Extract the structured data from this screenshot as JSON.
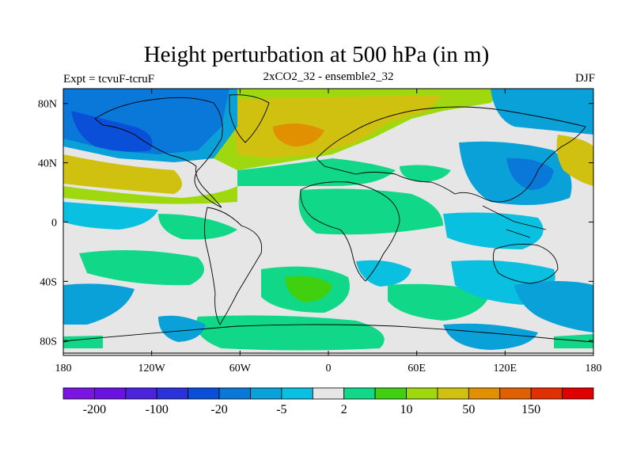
{
  "title": "Height perturbation at 500 hPa (in m)",
  "subtitle_left": "Expt = tcvuF-tcruF",
  "subtitle_center": "2xCO2_32 - ensemble2_32",
  "subtitle_right": "DJF",
  "map": {
    "lat_range": [
      -90,
      90
    ],
    "lon_range": [
      -180,
      180
    ],
    "lat_ticks": [
      {
        "value": 80,
        "label": "80N"
      },
      {
        "value": 40,
        "label": "40N"
      },
      {
        "value": 0,
        "label": "0"
      },
      {
        "value": -40,
        "label": "40S"
      },
      {
        "value": -80,
        "label": "80S"
      }
    ],
    "lon_ticks": [
      {
        "value": -180,
        "label": "180"
      },
      {
        "value": -120,
        "label": "120W"
      },
      {
        "value": -60,
        "label": "60W"
      },
      {
        "value": 0,
        "label": "0"
      },
      {
        "value": 60,
        "label": "60E"
      },
      {
        "value": 120,
        "label": "120E"
      },
      {
        "value": 180,
        "label": "180"
      }
    ],
    "background_color": "#e6e6e6"
  },
  "colorbar": {
    "colors": [
      "#7a16e0",
      "#6a12e0",
      "#4a24dc",
      "#2a32d8",
      "#0a4fd8",
      "#0a78d8",
      "#0aa0d8",
      "#0ac0e0",
      "#e6e6e6",
      "#10d888",
      "#40d010",
      "#a0d810",
      "#d0c010",
      "#e09000",
      "#e06000",
      "#e03000",
      "#e00000"
    ],
    "labels": [
      {
        "index": 1,
        "label": "-200"
      },
      {
        "index": 3,
        "label": "-100"
      },
      {
        "index": 5,
        "label": "-20"
      },
      {
        "index": 7,
        "label": "-5"
      },
      {
        "index": 9,
        "label": "2"
      },
      {
        "index": 11,
        "label": "10"
      },
      {
        "index": 13,
        "label": "50"
      },
      {
        "index": 15,
        "label": "150"
      }
    ]
  }
}
